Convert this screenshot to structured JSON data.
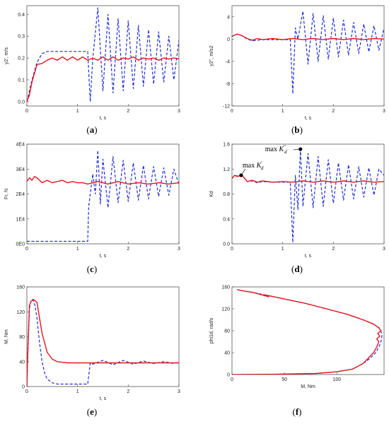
{
  "chart_data": [
    {
      "id": "a",
      "panel_label": "a",
      "type": "line",
      "xlabel": "t, s",
      "ylabel": "y2', m/s",
      "xlim": [
        0,
        3
      ],
      "ylim": [
        -0.02,
        0.44
      ],
      "xticks": [
        0,
        1,
        2,
        3
      ],
      "xtick_labels": [
        "0",
        "1",
        "2",
        "3"
      ],
      "yticks": [
        0,
        0.1,
        0.2,
        0.3,
        0.4
      ],
      "ytick_labels": [
        "0.0",
        "0.1",
        "0.2",
        "0.3",
        "0.4"
      ],
      "colors": {
        "solid": "#e8141c",
        "dashed": "#1f2fd9"
      },
      "series": [
        {
          "style": "solid",
          "x": [
            0,
            0.05,
            0.1,
            0.2,
            0.3,
            0.4,
            0.5,
            0.6,
            0.7,
            0.8,
            0.9,
            1.0,
            1.1,
            1.2,
            1.3,
            1.4,
            1.5,
            1.6,
            1.7,
            1.8,
            1.9,
            2.0,
            2.1,
            2.2,
            2.3,
            2.4,
            2.5,
            2.6,
            2.7,
            2.8,
            2.9,
            3.0
          ],
          "y": [
            0,
            0.03,
            0.09,
            0.17,
            0.175,
            0.19,
            0.2,
            0.19,
            0.205,
            0.19,
            0.205,
            0.19,
            0.205,
            0.19,
            0.2,
            0.19,
            0.205,
            0.19,
            0.205,
            0.19,
            0.2,
            0.195,
            0.205,
            0.19,
            0.2,
            0.195,
            0.2,
            0.19,
            0.2,
            0.195,
            0.2,
            0.195
          ]
        },
        {
          "style": "dashed",
          "x": [
            0,
            0.1,
            0.2,
            0.3,
            0.4,
            0.6,
            0.8,
            1.0,
            1.2,
            1.25,
            1.3,
            1.4,
            1.5,
            1.6,
            1.7,
            1.8,
            1.9,
            2.0,
            2.1,
            2.2,
            2.3,
            2.4,
            2.5,
            2.6,
            2.7,
            2.8,
            2.9,
            3.0
          ],
          "y": [
            0,
            0.1,
            0.18,
            0.22,
            0.23,
            0.23,
            0.23,
            0.23,
            0.23,
            0.0,
            0.2,
            0.43,
            0.05,
            0.4,
            0.04,
            0.38,
            0.05,
            0.37,
            0.06,
            0.35,
            0.07,
            0.33,
            0.08,
            0.32,
            0.09,
            0.3,
            0.1,
            0.28
          ]
        }
      ]
    },
    {
      "id": "b",
      "panel_label": "b",
      "type": "line",
      "xlabel": "t, s",
      "ylabel": "y2'', m/s2",
      "xlim": [
        0,
        3
      ],
      "ylim": [
        -12,
        6
      ],
      "xticks": [
        0,
        1,
        2,
        3
      ],
      "xtick_labels": [
        "0",
        "1",
        "2",
        "3"
      ],
      "yticks": [
        -12,
        -8,
        -4,
        0,
        4
      ],
      "ytick_labels": [
        "-12",
        "-8",
        "-4",
        "0",
        "4"
      ],
      "colors": {
        "solid": "#e8141c",
        "dashed": "#1f2fd9"
      },
      "series": [
        {
          "style": "solid",
          "x": [
            0,
            0.1,
            0.2,
            0.3,
            0.4,
            0.5,
            0.6,
            0.8,
            1.0,
            1.2,
            1.4,
            1.6,
            1.8,
            2.0,
            2.2,
            2.4,
            2.6,
            2.8,
            3.0
          ],
          "y": [
            0.5,
            0.9,
            0.6,
            0.1,
            -0.2,
            0.1,
            -0.1,
            0.1,
            -0.1,
            0.1,
            -0.1,
            0.1,
            -0.1,
            0.1,
            -0.1,
            0.1,
            -0.1,
            0.1,
            0.0
          ]
        },
        {
          "style": "dashed",
          "x": [
            0,
            0.1,
            0.2,
            0.3,
            0.4,
            0.6,
            0.8,
            1.0,
            1.15,
            1.2,
            1.25,
            1.3,
            1.4,
            1.5,
            1.6,
            1.7,
            1.8,
            1.9,
            2.0,
            2.1,
            2.2,
            2.3,
            2.4,
            2.5,
            2.6,
            2.7,
            2.8,
            2.9,
            3.0
          ],
          "y": [
            0.5,
            0.9,
            0.6,
            0.0,
            -0.3,
            -0.1,
            -0.1,
            -0.1,
            -0.1,
            -9.8,
            2.0,
            0.0,
            5.0,
            -4.5,
            4.6,
            -4.0,
            4.2,
            -3.6,
            3.8,
            -3.2,
            3.4,
            -2.9,
            3.0,
            -2.6,
            2.7,
            -2.3,
            2.4,
            -2.0,
            2.0
          ]
        }
      ]
    },
    {
      "id": "c",
      "panel_label": "c",
      "type": "line",
      "xlabel": "t, s",
      "ylabel": "Fr, N",
      "xlim": [
        0,
        3
      ],
      "ylim": [
        0,
        40000
      ],
      "xticks": [
        0,
        1,
        2,
        3
      ],
      "xtick_labels": [
        "0",
        "1",
        "2",
        "3"
      ],
      "yticks": [
        0,
        10000,
        20000,
        30000,
        40000
      ],
      "ytick_labels": [
        "0E0",
        "1E4",
        "2E4",
        "3E4",
        "4E4"
      ],
      "colors": {
        "solid": "#e8141c",
        "dashed": "#1f2fd9"
      },
      "series": [
        {
          "style": "solid",
          "x": [
            0,
            0.05,
            0.1,
            0.15,
            0.2,
            0.3,
            0.4,
            0.5,
            0.6,
            0.7,
            0.8,
            0.9,
            1.0,
            1.1,
            1.2,
            1.4,
            1.6,
            1.8,
            2.0,
            2.2,
            2.4,
            2.6,
            2.8,
            3.0
          ],
          "y": [
            25000,
            26500,
            25500,
            27000,
            26500,
            24500,
            25500,
            24500,
            25000,
            25500,
            24500,
            25000,
            24500,
            24500,
            24000,
            25000,
            24000,
            25000,
            24000,
            24500,
            24000,
            24500,
            24000,
            24500
          ]
        },
        {
          "style": "dashed",
          "x": [
            0,
            0.5,
            1.0,
            1.2,
            1.22,
            1.3,
            1.35,
            1.4,
            1.45,
            1.5,
            1.6,
            1.7,
            1.8,
            1.9,
            2.0,
            2.1,
            2.2,
            2.3,
            2.4,
            2.5,
            2.6,
            2.7,
            2.8,
            2.9,
            3.0
          ],
          "y": [
            1000,
            1000,
            1000,
            1000,
            15000,
            28000,
            20000,
            37500,
            16000,
            34000,
            14500,
            35000,
            16500,
            33500,
            17000,
            32500,
            17500,
            31500,
            18000,
            31000,
            19000,
            30500,
            19500,
            30000,
            24000
          ]
        }
      ]
    },
    {
      "id": "d",
      "panel_label": "d",
      "type": "line",
      "xlabel": "t, s",
      "ylabel": "Kd",
      "xlim": [
        0,
        3
      ],
      "ylim": [
        0,
        1.6
      ],
      "xticks": [
        0,
        1,
        2,
        3
      ],
      "xtick_labels": [
        "0",
        "1",
        "2",
        "3"
      ],
      "yticks": [
        0,
        0.4,
        0.8,
        1.2,
        1.6
      ],
      "ytick_labels": [
        "0.0",
        "0.4",
        "0.8",
        "1.2",
        "1.6"
      ],
      "colors": {
        "solid": "#e8141c",
        "dashed": "#1f2fd9"
      },
      "annotations": [
        {
          "text": "max K'd",
          "base": "max K",
          "sup": "′",
          "sub": "d",
          "x": 0.18,
          "y": 1.1
        },
        {
          "text": "max K''d",
          "base": "max K",
          "sup": "″",
          "sub": "d",
          "x": 1.35,
          "y": 1.52
        }
      ],
      "series": [
        {
          "style": "solid",
          "x": [
            0,
            0.05,
            0.1,
            0.2,
            0.3,
            0.4,
            0.5,
            0.6,
            0.8,
            1.0,
            1.2,
            1.4,
            1.6,
            1.8,
            2.0,
            2.2,
            2.4,
            2.6,
            2.8,
            3.0
          ],
          "y": [
            1.05,
            1.1,
            1.08,
            1.1,
            1.0,
            1.02,
            0.99,
            1.01,
            0.99,
            1.0,
            0.99,
            1.01,
            0.99,
            1.01,
            0.99,
            1.01,
            0.99,
            1.01,
            0.99,
            1.0
          ]
        },
        {
          "style": "dashed",
          "x": [
            0,
            0.05,
            0.1,
            0.2,
            0.3,
            0.4,
            0.5,
            0.6,
            0.8,
            1.0,
            1.15,
            1.2,
            1.25,
            1.3,
            1.35,
            1.4,
            1.5,
            1.6,
            1.7,
            1.8,
            1.9,
            2.0,
            2.1,
            2.2,
            2.3,
            2.4,
            2.5,
            2.6,
            2.7,
            2.8,
            2.9,
            3.0
          ],
          "y": [
            1.05,
            1.1,
            1.09,
            1.1,
            1.0,
            1.01,
            0.98,
            1.0,
            0.99,
            0.99,
            0.99,
            0.02,
            1.1,
            0.55,
            1.52,
            0.6,
            1.45,
            0.58,
            1.4,
            0.6,
            1.35,
            0.65,
            1.3,
            0.7,
            1.27,
            0.72,
            1.24,
            0.75,
            1.22,
            0.78,
            1.2,
            1.1
          ]
        }
      ]
    },
    {
      "id": "e",
      "panel_label": "e",
      "type": "line",
      "xlabel": "t, s",
      "ylabel": "M, Nm",
      "xlim": [
        0,
        3
      ],
      "ylim": [
        0,
        160
      ],
      "xticks": [
        0,
        1,
        2,
        3
      ],
      "xtick_labels": [
        "0",
        "1",
        "2",
        "3"
      ],
      "yticks": [
        0,
        40,
        80,
        120,
        160
      ],
      "ytick_labels": [
        "0",
        "40",
        "80",
        "120",
        "160"
      ],
      "colors": {
        "solid": "#e8141c",
        "dashed": "#1f2fd9"
      },
      "series": [
        {
          "style": "solid",
          "x": [
            0,
            0.02,
            0.05,
            0.08,
            0.12,
            0.16,
            0.2,
            0.25,
            0.3,
            0.4,
            0.5,
            0.6,
            0.7,
            0.8,
            1.0,
            1.2,
            1.4,
            1.6,
            1.8,
            2.0,
            2.2,
            2.4,
            2.6,
            2.8,
            3.0
          ],
          "y": [
            0,
            60,
            130,
            136,
            140,
            138,
            135,
            110,
            85,
            55,
            44,
            40,
            39,
            38,
            38,
            38,
            38,
            38,
            38,
            38,
            38,
            38,
            38,
            38,
            38
          ]
        },
        {
          "style": "dashed",
          "x": [
            0,
            0.02,
            0.05,
            0.08,
            0.12,
            0.16,
            0.2,
            0.25,
            0.3,
            0.35,
            0.4,
            0.5,
            0.6,
            0.7,
            0.8,
            1.0,
            1.2,
            1.25,
            1.3,
            1.5,
            1.7,
            1.9,
            2.1,
            2.3,
            2.5,
            2.7,
            2.9,
            3.0
          ],
          "y": [
            0,
            50,
            125,
            138,
            139,
            130,
            110,
            70,
            40,
            22,
            12,
            6,
            4,
            4,
            4,
            4,
            4,
            38,
            36,
            42,
            35,
            42,
            36,
            41,
            37,
            40,
            37,
            39
          ]
        }
      ]
    },
    {
      "id": "f",
      "panel_label": "f",
      "type": "line",
      "xlabel": "M, Nm",
      "ylabel": "phi1d, rad/s",
      "xlim": [
        0,
        145
      ],
      "ylim": [
        0,
        160
      ],
      "xticks": [
        0,
        50,
        100
      ],
      "xtick_labels": [
        "0",
        "50",
        "100"
      ],
      "yticks": [
        0,
        40,
        80,
        120,
        160
      ],
      "ytick_labels": [
        "0",
        "40",
        "80",
        "120",
        "160"
      ],
      "colors": {
        "solid": "#e8141c",
        "dashed": "#1f2fd9"
      },
      "series": [
        {
          "style": "solid",
          "x": [
            0,
            40,
            80,
            100,
            115,
            125,
            130,
            135,
            138,
            140,
            138,
            141,
            139,
            142,
            140,
            135,
            125,
            110,
            90,
            70,
            50,
            40,
            30,
            35,
            20,
            10,
            5
          ],
          "y": [
            0,
            0.5,
            2,
            5,
            10,
            20,
            30,
            40,
            50,
            60,
            65,
            70,
            75,
            80,
            85,
            92,
            100,
            110,
            120,
            130,
            138,
            142,
            146,
            142,
            150,
            153,
            155
          ]
        },
        {
          "style": "dashed",
          "x": [
            0,
            40,
            80,
            100,
            115,
            125,
            132,
            137,
            140,
            142,
            143,
            142,
            140,
            135,
            125,
            110,
            90,
            70,
            50,
            40,
            30,
            20,
            10,
            5
          ],
          "y": [
            0,
            0.5,
            2,
            5,
            10,
            20,
            30,
            40,
            50,
            60,
            70,
            80,
            86,
            92,
            100,
            110,
            120,
            130,
            138,
            142,
            146,
            150,
            153,
            155
          ]
        }
      ]
    }
  ]
}
